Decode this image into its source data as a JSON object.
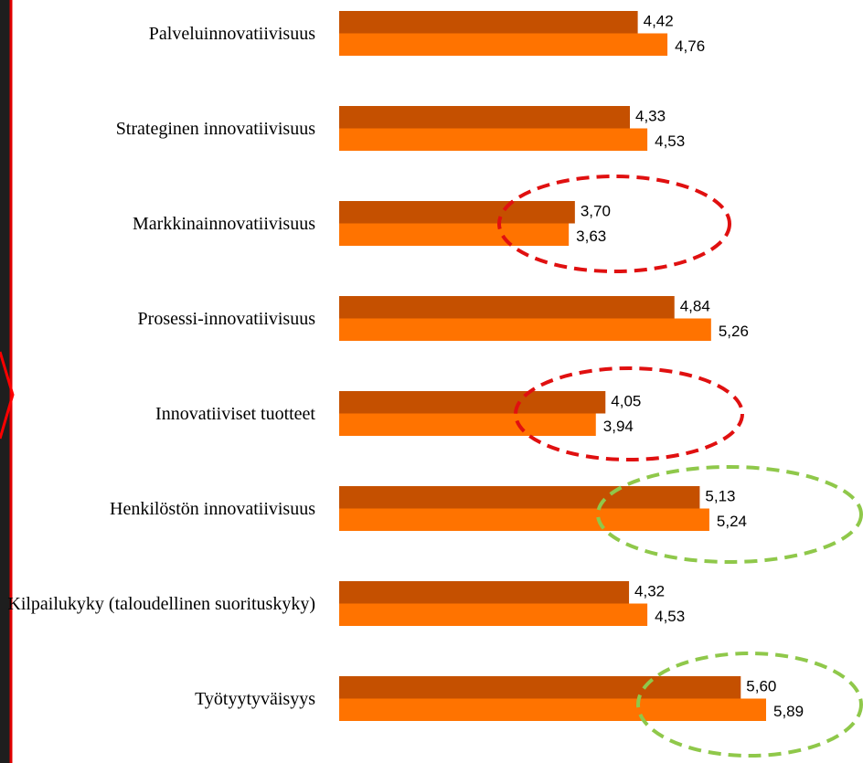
{
  "chart_data": {
    "type": "bar",
    "categories": [
      "Palveluinnovatiivisuus",
      "Strateginen innovatiivisuus",
      "Markkinainnovatiivisuus",
      "Prosessi-innovatiivisuus",
      "Innovatiiviset tuotteet",
      "Henkilöstön innovatiivisuus",
      "Kilpailukyky (taloudellinen suorituskyky)",
      "Työtyytyväisyys"
    ],
    "series": [
      {
        "color": "#c55000",
        "values": [
          4.42,
          4.33,
          3.7,
          4.84,
          4.05,
          5.13,
          4.32,
          5.6
        ],
        "value_labels": [
          "4,42",
          "4,33",
          "3,70",
          "4,84",
          "4,05",
          "5,13",
          "4,32",
          "5,60"
        ]
      },
      {
        "color": "#ff7300",
        "values": [
          4.76,
          4.53,
          3.63,
          5.26,
          3.94,
          5.24,
          4.53,
          5.89
        ],
        "value_labels": [
          "4,76",
          "4,53",
          "3,63",
          "5,26",
          "3,94",
          "5,24",
          "4,53",
          "5,89"
        ]
      }
    ],
    "xlim": [
      1,
      7
    ],
    "orientation": "horizontal"
  }
}
